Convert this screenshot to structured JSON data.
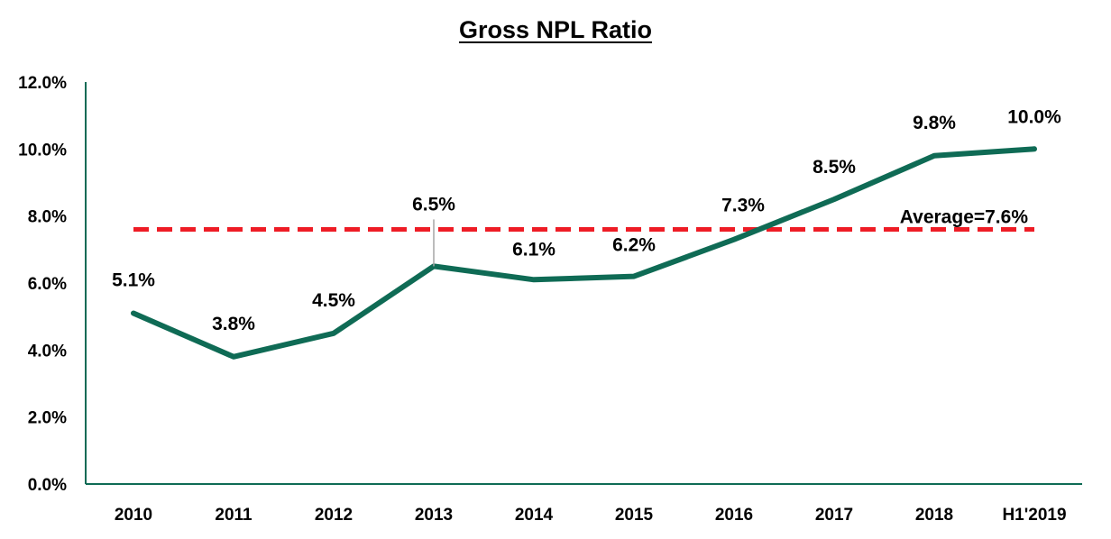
{
  "chart_data": {
    "type": "line",
    "title": "Gross NPL Ratio",
    "xlabel": "",
    "ylabel": "",
    "categories": [
      "2010",
      "2011",
      "2012",
      "2013",
      "2014",
      "2015",
      "2016",
      "2017",
      "2018",
      "H1'2019"
    ],
    "series": [
      {
        "values": [
          5.1,
          3.8,
          4.5,
          6.5,
          6.1,
          6.2,
          7.3,
          8.5,
          9.8,
          10.0
        ],
        "labels": [
          "5.1%",
          "3.8%",
          "4.5%",
          "6.5%",
          "6.1%",
          "6.2%",
          "7.3%",
          "8.5%",
          "9.8%",
          "10.0%"
        ],
        "color": "#0f6b55"
      }
    ],
    "reference_line": {
      "value": 7.6,
      "label": "Average=7.6%",
      "color": "#ee1c25",
      "style": "dashed"
    },
    "ylim": [
      0,
      12
    ],
    "yticks": [
      0,
      2,
      4,
      6,
      8,
      10,
      12
    ],
    "ytick_labels": [
      "0.0%",
      "2.0%",
      "4.0%",
      "6.0%",
      "8.0%",
      "10.0%",
      "12.0%"
    ],
    "axis_color": "#0f6b55",
    "grid": false,
    "legend": "none"
  }
}
